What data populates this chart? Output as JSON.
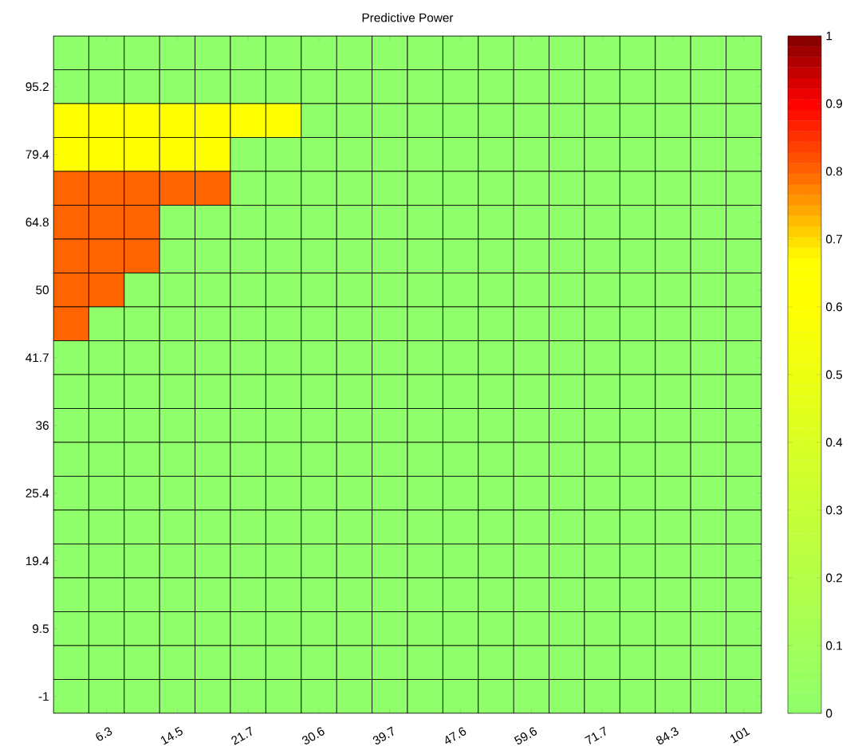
{
  "chart_data": {
    "type": "heatmap",
    "title": "Predictive Power",
    "categories": [
      null,
      "6.3",
      null,
      "14.5",
      null,
      "21.7",
      null,
      "30.6",
      null,
      "39.7",
      null,
      "47.6",
      null,
      "59.6",
      null,
      "71.7",
      null,
      "84.3",
      null,
      "101"
    ],
    "y_categories": [
      null,
      "95.2",
      null,
      "79.4",
      null,
      "64.8",
      null,
      "50",
      null,
      "41.7",
      null,
      "36",
      null,
      "25.4",
      null,
      "19.4",
      null,
      "9.5",
      null,
      "-1"
    ],
    "cells": [
      [
        0,
        0,
        0,
        0,
        0,
        0,
        0,
        0,
        0,
        0,
        0,
        0,
        0,
        0,
        0,
        0,
        0,
        0,
        0,
        0
      ],
      [
        0,
        0,
        0,
        0,
        0,
        0,
        0,
        0,
        0,
        0,
        0,
        0,
        0,
        0,
        0,
        0,
        0,
        0,
        0,
        0
      ],
      [
        0.6,
        0.6,
        0.6,
        0.6,
        0.6,
        0.6,
        0.6,
        0,
        0,
        0,
        0,
        0,
        0,
        0,
        0,
        0,
        0,
        0,
        0,
        0
      ],
      [
        0.6,
        0.6,
        0.6,
        0.6,
        0.6,
        0,
        0,
        0,
        0,
        0,
        0,
        0,
        0,
        0,
        0,
        0,
        0,
        0,
        0,
        0
      ],
      [
        0.8,
        0.8,
        0.8,
        0.8,
        0.8,
        0,
        0,
        0,
        0,
        0,
        0,
        0,
        0,
        0,
        0,
        0,
        0,
        0,
        0,
        0
      ],
      [
        0.8,
        0.8,
        0.8,
        0,
        0,
        0,
        0,
        0,
        0,
        0,
        0,
        0,
        0,
        0,
        0,
        0,
        0,
        0,
        0,
        0
      ],
      [
        0.8,
        0.8,
        0.8,
        0,
        0,
        0,
        0,
        0,
        0,
        0,
        0,
        0,
        0,
        0,
        0,
        0,
        0,
        0,
        0,
        0
      ],
      [
        0.8,
        0.8,
        0,
        0,
        0,
        0,
        0,
        0,
        0,
        0,
        0,
        0,
        0,
        0,
        0,
        0,
        0,
        0,
        0,
        0
      ],
      [
        0.8,
        0,
        0,
        0,
        0,
        0,
        0,
        0,
        0,
        0,
        0,
        0,
        0,
        0,
        0,
        0,
        0,
        0,
        0,
        0
      ],
      [
        0,
        0,
        0,
        0,
        0,
        0,
        0,
        0,
        0,
        0,
        0,
        0,
        0,
        0,
        0,
        0,
        0,
        0,
        0,
        0
      ],
      [
        0,
        0,
        0,
        0,
        0,
        0,
        0,
        0,
        0,
        0,
        0,
        0,
        0,
        0,
        0,
        0,
        0,
        0,
        0,
        0
      ],
      [
        0,
        0,
        0,
        0,
        0,
        0,
        0,
        0,
        0,
        0,
        0,
        0,
        0,
        0,
        0,
        0,
        0,
        0,
        0,
        0
      ],
      [
        0,
        0,
        0,
        0,
        0,
        0,
        0,
        0,
        0,
        0,
        0,
        0,
        0,
        0,
        0,
        0,
        0,
        0,
        0,
        0
      ],
      [
        0,
        0,
        0,
        0,
        0,
        0,
        0,
        0,
        0,
        0,
        0,
        0,
        0,
        0,
        0,
        0,
        0,
        0,
        0,
        0
      ],
      [
        0,
        0,
        0,
        0,
        0,
        0,
        0,
        0,
        0,
        0,
        0,
        0,
        0,
        0,
        0,
        0,
        0,
        0,
        0,
        0
      ],
      [
        0,
        0,
        0,
        0,
        0,
        0,
        0,
        0,
        0,
        0,
        0,
        0,
        0,
        0,
        0,
        0,
        0,
        0,
        0,
        0
      ],
      [
        0,
        0,
        0,
        0,
        0,
        0,
        0,
        0,
        0,
        0,
        0,
        0,
        0,
        0,
        0,
        0,
        0,
        0,
        0,
        0
      ],
      [
        0,
        0,
        0,
        0,
        0,
        0,
        0,
        0,
        0,
        0,
        0,
        0,
        0,
        0,
        0,
        0,
        0,
        0,
        0,
        0
      ],
      [
        0,
        0,
        0,
        0,
        0,
        0,
        0,
        0,
        0,
        0,
        0,
        0,
        0,
        0,
        0,
        0,
        0,
        0,
        0,
        0
      ],
      [
        0,
        0,
        0,
        0,
        0,
        0,
        0,
        0,
        0,
        0,
        0,
        0,
        0,
        0,
        0,
        0,
        0,
        0,
        0,
        0
      ]
    ],
    "clim": [
      0,
      1
    ],
    "cticks": [
      0,
      0.1,
      0.2,
      0.3,
      0.4,
      0.5,
      0.6,
      0.7,
      0.8,
      0.9,
      1
    ]
  }
}
